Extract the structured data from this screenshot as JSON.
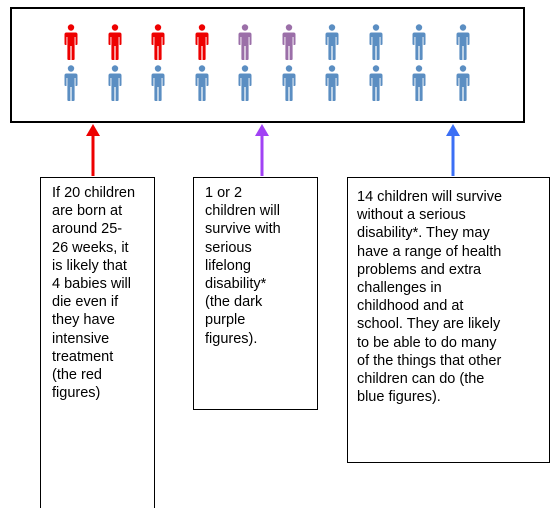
{
  "colors": {
    "red": "#ee0000",
    "purple": "#9b6fa8",
    "blue": "#5b8ec2",
    "violet_arrow": "#a142f4",
    "blue_arrow": "#3b6ff5"
  },
  "figures": {
    "rows": 2,
    "per_row": 10,
    "icon": "person-icon",
    "row1": [
      "red",
      "red",
      "red",
      "red",
      "purple",
      "purple",
      "blue",
      "blue",
      "blue",
      "blue"
    ],
    "row2": [
      "blue",
      "blue",
      "blue",
      "blue",
      "blue",
      "blue",
      "blue",
      "blue",
      "blue",
      "blue"
    ]
  },
  "boxes": [
    {
      "text": "If 20 children\nare born at\naround 25-\n26 weeks, it\nis likely that\n4 babies will\ndie even if\nthey have\nintensive\ntreatment\n(the red\nfigures)"
    },
    {
      "text": "1 or 2\nchildren will\nsurvive with\nserious\nlifelong\ndisability*\n(the dark\npurple\nfigures)."
    },
    {
      "text": "14 children will survive\nwithout a serious\ndisability*. They may\nhave a range of health\nproblems and extra\nchallenges in\nchildhood and at\nschool. They are likely\nto be able to do many\nof the things that other\nchildren can do (the\nblue figures)."
    }
  ]
}
